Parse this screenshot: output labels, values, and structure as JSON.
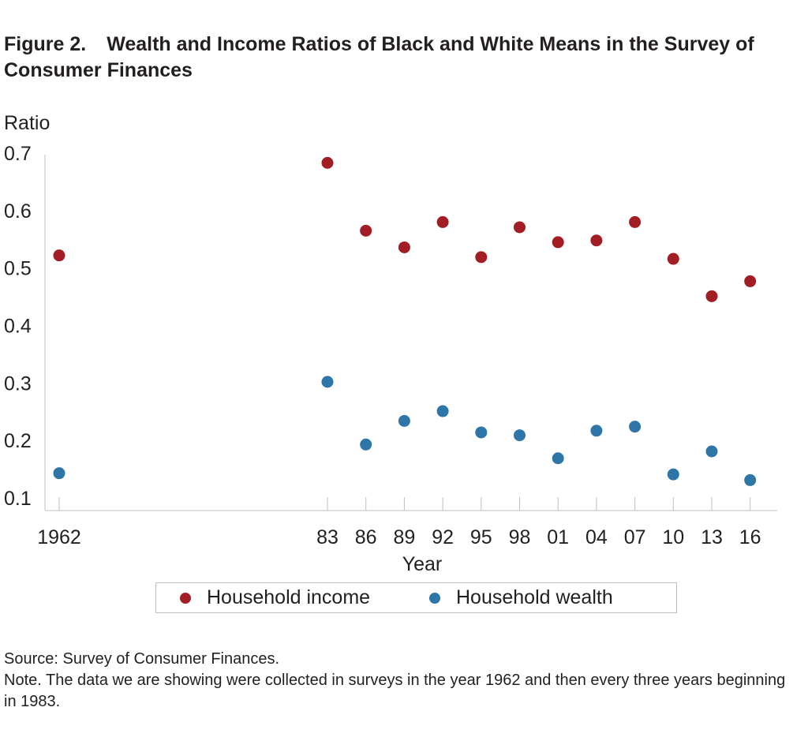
{
  "figure": {
    "number": "Figure 2.",
    "title": "Wealth and Income Ratios of Black and White Means in the Survey of Consumer Finances"
  },
  "notes": {
    "source": "Source: Survey of Consumer Finances.",
    "note": "Note. The data we are showing were collected in surveys in the year 1962 and then every three years beginning in 1983."
  },
  "chart_data": {
    "type": "scatter",
    "title": "Wealth and Income Ratios of Black and White Means in the Survey of Consumer Finances",
    "xlabel": "Year",
    "ylabel": "Ratio",
    "ylim": [
      0.1,
      0.7
    ],
    "yticks": [
      "0.7",
      "0.6",
      "0.5",
      "0.4",
      "0.3",
      "0.2",
      "0.1"
    ],
    "grid": false,
    "legend_position": "bottom",
    "categories": [
      "1962",
      "83",
      "86",
      "89",
      "92",
      "95",
      "98",
      "01",
      "04",
      "07",
      "10",
      "13",
      "16"
    ],
    "years": [
      1962,
      1983,
      1986,
      1989,
      1992,
      1995,
      1998,
      2001,
      2004,
      2007,
      2010,
      2013,
      2016
    ],
    "series": [
      {
        "name": "Household income",
        "color": "#a31d24",
        "values": [
          0.522,
          0.683,
          0.565,
          0.536,
          0.58,
          0.519,
          0.571,
          0.545,
          0.548,
          0.58,
          0.516,
          0.451,
          0.477
        ]
      },
      {
        "name": "Household wealth",
        "color": "#2e75a8",
        "values": [
          0.143,
          0.302,
          0.193,
          0.234,
          0.251,
          0.214,
          0.209,
          0.169,
          0.217,
          0.224,
          0.141,
          0.181,
          0.131
        ]
      }
    ]
  }
}
